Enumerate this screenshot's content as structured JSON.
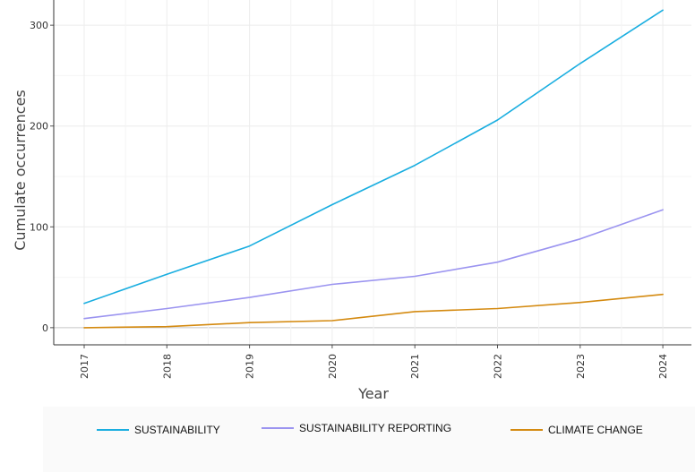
{
  "chart_data": {
    "type": "line",
    "title": "",
    "xlabel": "Year",
    "ylabel": "Cumulate occurrences",
    "x": [
      "2017",
      "2018",
      "2019",
      "2020",
      "2021",
      "2022",
      "2023",
      "2024"
    ],
    "ylim": [
      -17,
      325
    ],
    "yticks": [
      0,
      100,
      200,
      300
    ],
    "grid": true,
    "legend_position": "bottom",
    "series": [
      {
        "name": "SUSTAINABILITY",
        "color": "#1aaee0",
        "values": [
          24,
          53,
          81,
          122,
          161,
          206,
          262,
          315
        ]
      },
      {
        "name": "SUSTAINABILITY REPORTING",
        "color": "#9b94f0",
        "values": [
          9,
          19,
          30,
          43,
          51,
          65,
          88,
          117
        ]
      },
      {
        "name": "CLIMATE CHANGE",
        "color": "#d48a10",
        "values": [
          0,
          1,
          5,
          7,
          16,
          19,
          25,
          33
        ]
      }
    ]
  }
}
